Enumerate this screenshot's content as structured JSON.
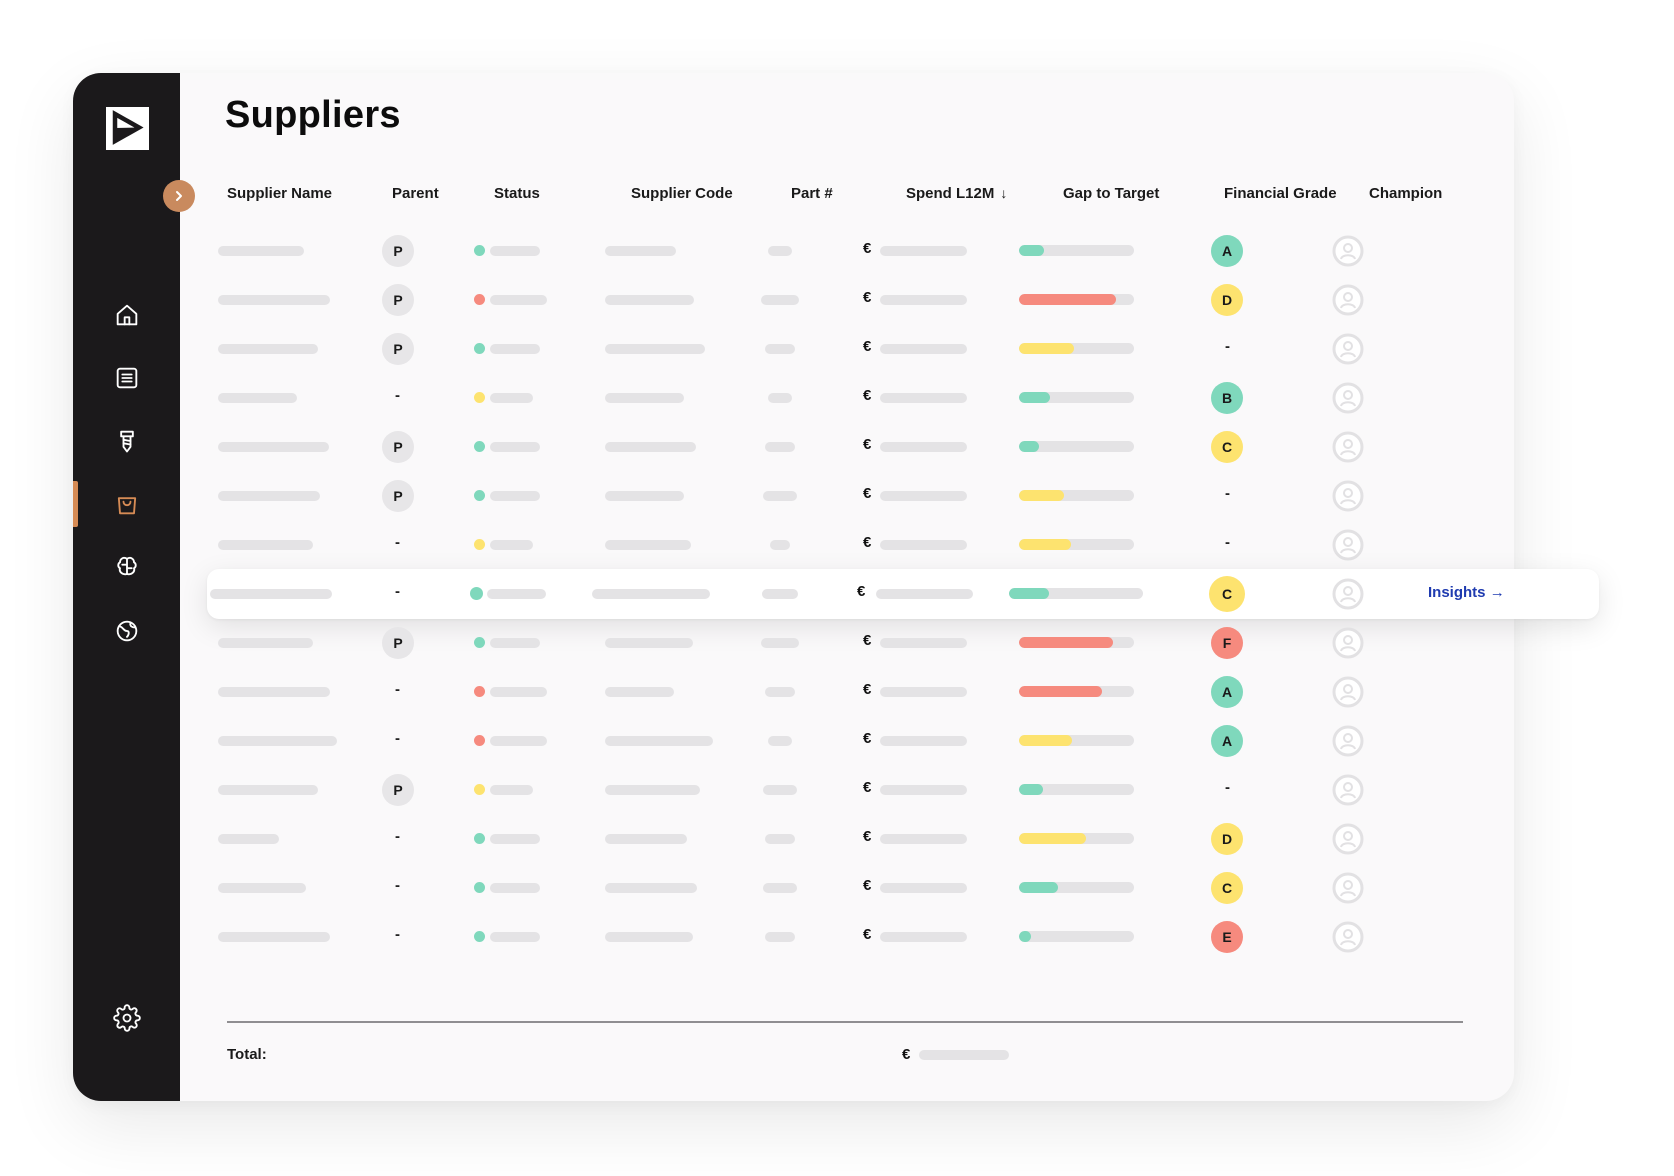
{
  "page": {
    "title": "Suppliers",
    "total_label": "Total:",
    "currency_symbol": "€",
    "insights_label": "Insights",
    "insights_arrow": "→",
    "sort_indicator": "↓"
  },
  "sidebar": {
    "logo_icon": "play-logo-icon",
    "expand_icon": "chevron-right-icon",
    "items": [
      {
        "id": "home",
        "icon": "home-icon",
        "active": false
      },
      {
        "id": "list",
        "icon": "list-icon",
        "active": false
      },
      {
        "id": "parts",
        "icon": "screw-icon",
        "active": false
      },
      {
        "id": "suppliers",
        "icon": "shopping-bag-icon",
        "active": true
      },
      {
        "id": "intelligence",
        "icon": "brain-icon",
        "active": false
      },
      {
        "id": "global",
        "icon": "globe-icon",
        "active": false
      }
    ],
    "settings_icon": "gear-icon",
    "colors": {
      "background": "#1b191b",
      "accent": "#d68b55"
    }
  },
  "table": {
    "columns": [
      "Supplier Name",
      "Parent",
      "Status",
      "Supplier Code",
      "Part #",
      "Spend L12M",
      "Gap to Target",
      "Financial Grade",
      "Champion"
    ],
    "sorted_column": "Spend L12M",
    "rows": [
      {
        "parent": "P",
        "status": "green",
        "gap": {
          "fraction": 0.22,
          "color": "green"
        },
        "grade": "A"
      },
      {
        "parent": "P",
        "status": "red",
        "gap": {
          "fraction": 0.84,
          "color": "red"
        },
        "grade": "D"
      },
      {
        "parent": "P",
        "status": "green",
        "gap": {
          "fraction": 0.48,
          "color": "yellow"
        },
        "grade": "-"
      },
      {
        "parent": "-",
        "status": "yellow",
        "gap": {
          "fraction": 0.27,
          "color": "green"
        },
        "grade": "B"
      },
      {
        "parent": "P",
        "status": "green",
        "gap": {
          "fraction": 0.17,
          "color": "green"
        },
        "grade": "C"
      },
      {
        "parent": "P",
        "status": "green",
        "gap": {
          "fraction": 0.39,
          "color": "yellow"
        },
        "grade": "-"
      },
      {
        "parent": "-",
        "status": "yellow",
        "gap": {
          "fraction": 0.45,
          "color": "yellow"
        },
        "grade": "-"
      },
      {
        "parent": "-",
        "status": "green",
        "gap": {
          "fraction": 0.3,
          "color": "green"
        },
        "grade": "C",
        "highlighted": true
      },
      {
        "parent": "P",
        "status": "green",
        "gap": {
          "fraction": 0.82,
          "color": "red"
        },
        "grade": "F"
      },
      {
        "parent": "-",
        "status": "red",
        "gap": {
          "fraction": 0.72,
          "color": "red"
        },
        "grade": "A"
      },
      {
        "parent": "-",
        "status": "red",
        "gap": {
          "fraction": 0.46,
          "color": "yellow"
        },
        "grade": "A"
      },
      {
        "parent": "P",
        "status": "yellow",
        "gap": {
          "fraction": 0.21,
          "color": "green"
        },
        "grade": "-"
      },
      {
        "parent": "-",
        "status": "green",
        "gap": {
          "fraction": 0.58,
          "color": "yellow"
        },
        "grade": "D"
      },
      {
        "parent": "-",
        "status": "green",
        "gap": {
          "fraction": 0.34,
          "color": "green"
        },
        "grade": "C"
      },
      {
        "parent": "-",
        "status": "green",
        "gap": {
          "fraction": 0.1,
          "color": "green"
        },
        "grade": "E"
      }
    ]
  },
  "colors": {
    "green": "#7fd8bc",
    "red": "#f68a7e",
    "yellow": "#fde36f",
    "grade_A": "#7fd8bc",
    "grade_B": "#7fd8bc",
    "grade_C": "#fde36f",
    "grade_D": "#fde36f",
    "grade_E": "#f68a7e",
    "grade_F": "#f68a7e",
    "placeholder_bar": "#e4e3e5",
    "insights_link": "#1f3bb0"
  }
}
